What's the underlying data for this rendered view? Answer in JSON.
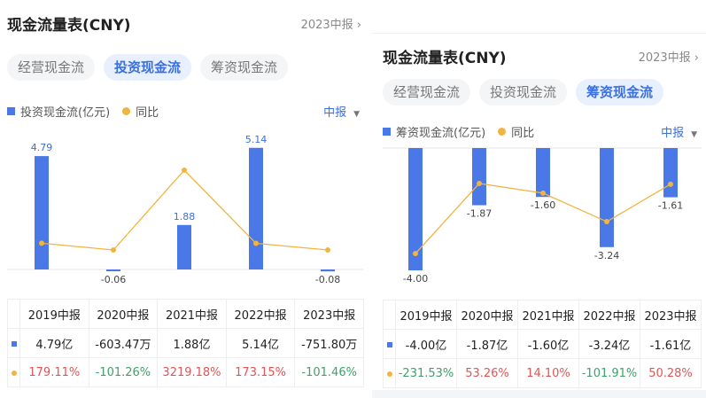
{
  "colors": {
    "bar": "#4a78e6",
    "line": "#f2b441",
    "up": "#e05555",
    "down": "#3fa06a",
    "accent": "#3a6fe0"
  },
  "panels": [
    {
      "title": "现金流量表(CNY)",
      "period": "2023中报",
      "tabs": [
        "经营现金流",
        "投资现金流",
        "筹资现金流"
      ],
      "active_tab": 1,
      "legend_bar": "投资现金流(亿元)",
      "legend_line": "同比",
      "period_select": "中报",
      "chart_data": {
        "type": "bar+line",
        "categories": [
          "2019中报",
          "2020中报",
          "2021中报",
          "2022中报",
          "2023中报"
        ],
        "series": [
          {
            "name": "投资现金流(亿元)",
            "values": [
              4.79,
              -0.06,
              1.88,
              5.14,
              -0.08
            ],
            "labels": [
              "4.79",
              "-0.06",
              "1.88",
              "5.14",
              "-0.08"
            ]
          },
          {
            "name": "同比",
            "values": [
              179.11,
              -101.26,
              3219.18,
              173.15,
              -101.46
            ]
          }
        ]
      },
      "table": {
        "headers": [
          "2019中报",
          "2020中报",
          "2021中报",
          "2022中报",
          "2023中报"
        ],
        "values": [
          "4.79亿",
          "-603.47万",
          "1.88亿",
          "5.14亿",
          "-751.80万"
        ],
        "yoy": [
          "179.11%",
          "-101.26%",
          "3219.18%",
          "173.15%",
          "-101.46%"
        ]
      }
    },
    {
      "title": "现金流量表(CNY)",
      "period": "2023中报",
      "tabs": [
        "经营现金流",
        "投资现金流",
        "筹资现金流"
      ],
      "active_tab": 2,
      "legend_bar": "筹资现金流(亿元)",
      "legend_line": "同比",
      "period_select": "中报",
      "chart_data": {
        "type": "bar+line",
        "categories": [
          "2019中报",
          "2020中报",
          "2021中报",
          "2022中报",
          "2023中报"
        ],
        "series": [
          {
            "name": "筹资现金流(亿元)",
            "values": [
              -4.0,
              -1.87,
              -1.6,
              -3.24,
              -1.61
            ],
            "labels": [
              "-4.00",
              "-1.87",
              "-1.60",
              "-3.24",
              "-1.61"
            ]
          },
          {
            "name": "同比",
            "values": [
              -231.53,
              53.26,
              14.1,
              -101.91,
              50.28
            ]
          }
        ]
      },
      "table": {
        "headers": [
          "2019中报",
          "2020中报",
          "2021中报",
          "2022中报",
          "2023中报"
        ],
        "values": [
          "-4.00亿",
          "-1.87亿",
          "-1.60亿",
          "-3.24亿",
          "-1.61亿"
        ],
        "yoy": [
          "-231.53%",
          "53.26%",
          "14.10%",
          "-101.91%",
          "50.28%"
        ]
      }
    }
  ]
}
